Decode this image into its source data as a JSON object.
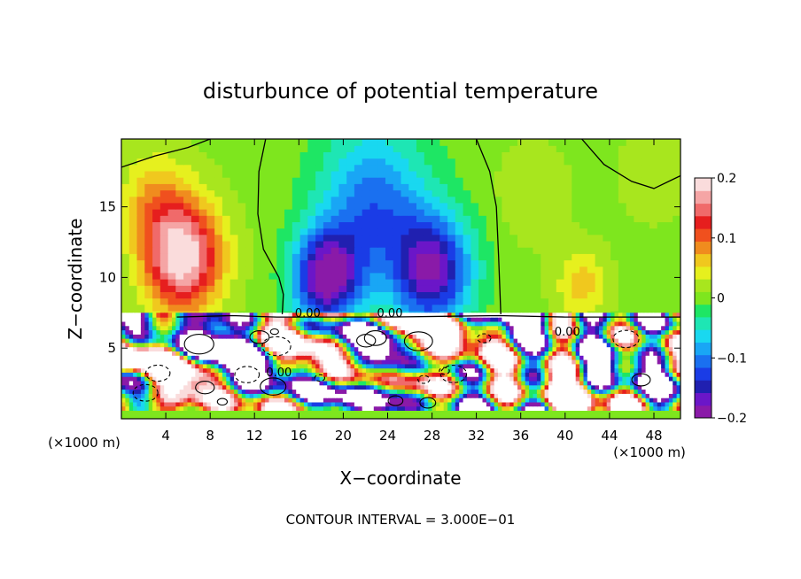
{
  "chart_data": {
    "type": "heatmap",
    "title": "disturbunce of potential temperature",
    "xlabel": "X−coordinate",
    "ylabel": "Z−coordinate",
    "x_unit": "(×1000 m)",
    "footer": "CONTOUR INTERVAL = 3.000E−01",
    "xlim": [
      0,
      50.4
    ],
    "ylim": [
      0,
      19.8
    ],
    "x_ticks": [
      4,
      8,
      12,
      16,
      20,
      24,
      28,
      32,
      36,
      40,
      44,
      48
    ],
    "y_ticks": [
      5,
      10,
      15
    ],
    "colorbar": {
      "range": [
        -0.2,
        0.2
      ],
      "ticks": [
        0.2,
        0.1,
        0,
        -0.1,
        -0.2
      ],
      "tick_labels": [
        "0.2",
        "0.1",
        "0",
        "−0.1",
        "−0.2"
      ],
      "colors": [
        "#8a1aa8",
        "#6b16c8",
        "#2020b0",
        "#1a3ce6",
        "#1a70f0",
        "#19a6f5",
        "#19d8f0",
        "#1ee6b4",
        "#1ee664",
        "#7ee61e",
        "#a8e61e",
        "#e6f01e",
        "#f0c81e",
        "#f08c1e",
        "#f0501e",
        "#e61e1e",
        "#f06a6a",
        "#f5a5a5",
        "#fadcdc"
      ]
    },
    "contour_labels": [
      {
        "text": "0.00",
        "x": 16.8,
        "y": 7.2
      },
      {
        "text": "0.00",
        "x": 24.2,
        "y": 7.2
      },
      {
        "text": "0.00",
        "x": 14.2,
        "y": 3.0
      },
      {
        "text": "0.00",
        "x": 40.2,
        "y": 5.9
      }
    ],
    "features": [
      {
        "name": "warm-anomaly-left",
        "x": 5.5,
        "z": 11.5,
        "value": 0.18
      },
      {
        "name": "cold-anomaly-center",
        "x": 18.5,
        "z": 9.8,
        "value": -0.18
      },
      {
        "name": "cold-anomaly-right",
        "x": 28.0,
        "z": 10.5,
        "value": -0.16
      },
      {
        "name": "warm-anomaly-right",
        "x": 41.5,
        "z": 9.5,
        "value": 0.07
      },
      {
        "name": "boundary-layer-noise",
        "z_range": [
          0,
          7.2
        ],
        "value_range": [
          -0.3,
          0.3
        ]
      }
    ]
  }
}
